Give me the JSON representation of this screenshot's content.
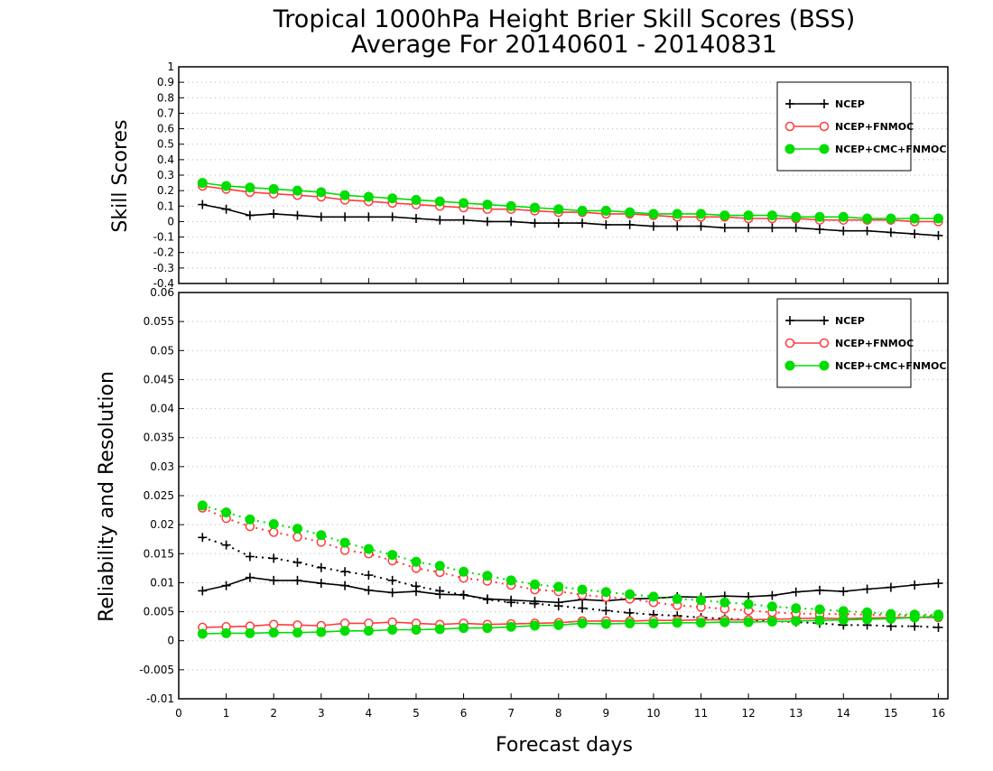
{
  "title_line1": "Tropical 1000hPa Height Brier Skill Scores (BSS)",
  "title_line2": "Average For 20140601 - 20140831",
  "xlabel": "Forecast days",
  "chart_data": [
    {
      "type": "line",
      "panel": "top",
      "ylabel": "Skill Scores",
      "ylim": [
        -0.4,
        1
      ],
      "yticks": [
        "1",
        "0.9",
        "0.8",
        "0.7",
        "0.6",
        "0.5",
        "0.4",
        "0.3",
        "0.2",
        "0.1",
        "0",
        "-0.1",
        "-0.2",
        "-0.3",
        "-0.4"
      ],
      "xlim": [
        0,
        16.2
      ],
      "xticks": [
        "0",
        "1",
        "2",
        "3",
        "4",
        "5",
        "6",
        "7",
        "8",
        "9",
        "10",
        "11",
        "12",
        "13",
        "14",
        "15",
        "16"
      ],
      "grid": true,
      "legend_position": "top-right",
      "x": [
        0.5,
        1,
        1.5,
        2,
        2.5,
        3,
        3.5,
        4,
        4.5,
        5,
        5.5,
        6,
        6.5,
        7,
        7.5,
        8,
        8.5,
        9,
        9.5,
        10,
        10.5,
        11,
        11.5,
        12,
        12.5,
        13,
        13.5,
        14,
        14.5,
        15,
        15.5,
        16
      ],
      "series": [
        {
          "name": "NCEP",
          "color": "#000000",
          "marker": "plus",
          "style": "solid",
          "values": [
            0.11,
            0.08,
            0.04,
            0.05,
            0.04,
            0.03,
            0.03,
            0.03,
            0.03,
            0.02,
            0.01,
            0.01,
            0.0,
            0.0,
            -0.01,
            -0.01,
            -0.01,
            -0.02,
            -0.02,
            -0.03,
            -0.03,
            -0.03,
            -0.04,
            -0.04,
            -0.04,
            -0.04,
            -0.05,
            -0.06,
            -0.06,
            -0.07,
            -0.08,
            -0.09
          ]
        },
        {
          "name": "NCEP+FNMOC",
          "color": "#ff3b3b",
          "marker": "open-circle",
          "style": "solid",
          "values": [
            0.23,
            0.21,
            0.19,
            0.18,
            0.17,
            0.16,
            0.14,
            0.13,
            0.12,
            0.11,
            0.1,
            0.09,
            0.08,
            0.08,
            0.07,
            0.06,
            0.06,
            0.05,
            0.05,
            0.04,
            0.03,
            0.03,
            0.03,
            0.02,
            0.02,
            0.02,
            0.01,
            0.01,
            0.01,
            0.01,
            0.0,
            0.0
          ]
        },
        {
          "name": "NCEP+CMC+FNMOC",
          "color": "#00dd00",
          "marker": "filled-circle",
          "style": "solid",
          "values": [
            0.25,
            0.23,
            0.22,
            0.21,
            0.2,
            0.19,
            0.17,
            0.16,
            0.15,
            0.14,
            0.13,
            0.12,
            0.11,
            0.1,
            0.09,
            0.08,
            0.07,
            0.07,
            0.06,
            0.05,
            0.05,
            0.05,
            0.04,
            0.04,
            0.04,
            0.03,
            0.03,
            0.03,
            0.02,
            0.02,
            0.02,
            0.02
          ]
        }
      ]
    },
    {
      "type": "line",
      "panel": "bottom",
      "ylabel": "Reliability and Resolution",
      "ylim": [
        -0.01,
        0.06
      ],
      "yticks": [
        "0.06",
        "0.055",
        "0.05",
        "0.045",
        "0.04",
        "0.035",
        "0.03",
        "0.025",
        "0.02",
        "0.015",
        "0.01",
        "0.005",
        "0",
        "-0.005",
        "-0.01"
      ],
      "xlim": [
        0,
        16.2
      ],
      "xticks": [
        "0",
        "1",
        "2",
        "3",
        "4",
        "5",
        "6",
        "7",
        "8",
        "9",
        "10",
        "11",
        "12",
        "13",
        "14",
        "15",
        "16"
      ],
      "grid": true,
      "legend_position": "top-right",
      "x": [
        0.5,
        1,
        1.5,
        2,
        2.5,
        3,
        3.5,
        4,
        4.5,
        5,
        5.5,
        6,
        6.5,
        7,
        7.5,
        8,
        8.5,
        9,
        9.5,
        10,
        10.5,
        11,
        11.5,
        12,
        12.5,
        13,
        13.5,
        14,
        14.5,
        15,
        15.5,
        16
      ],
      "series": [
        {
          "name": "NCEP",
          "color": "#000000",
          "marker": "plus",
          "style": "solid",
          "values": [
            0.0086,
            0.0095,
            0.0109,
            0.0104,
            0.0104,
            0.0099,
            0.0095,
            0.0087,
            0.0083,
            0.0085,
            0.008,
            0.0079,
            0.0072,
            0.007,
            0.0068,
            0.0066,
            0.0071,
            0.0069,
            0.0072,
            0.0073,
            0.0076,
            0.0075,
            0.0077,
            0.0076,
            0.0078,
            0.0084,
            0.0087,
            0.0085,
            0.0089,
            0.0092,
            0.0096,
            0.0099
          ]
        },
        {
          "name": "NCEP",
          "color": "#000000",
          "marker": "plus",
          "style": "dotted",
          "values": [
            0.0178,
            0.0165,
            0.0145,
            0.0142,
            0.0135,
            0.0126,
            0.0119,
            0.0113,
            0.0104,
            0.0094,
            0.0086,
            0.0079,
            0.0071,
            0.0066,
            0.0064,
            0.006,
            0.0056,
            0.0052,
            0.0048,
            0.0045,
            0.0043,
            0.004,
            0.0038,
            0.0036,
            0.0034,
            0.0032,
            0.003,
            0.0027,
            0.0027,
            0.0025,
            0.0025,
            0.0023
          ]
        },
        {
          "name": "NCEP+FNMOC",
          "color": "#ff3b3b",
          "marker": "open-circle",
          "style": "solid",
          "values": [
            0.0023,
            0.0024,
            0.0025,
            0.0028,
            0.0027,
            0.0026,
            0.003,
            0.003,
            0.0032,
            0.003,
            0.0028,
            0.003,
            0.0028,
            0.0029,
            0.003,
            0.0031,
            0.0034,
            0.0034,
            0.0034,
            0.0035,
            0.0035,
            0.0036,
            0.0036,
            0.0036,
            0.0037,
            0.0038,
            0.0039,
            0.0038,
            0.0039,
            0.004,
            0.004,
            0.004
          ]
        },
        {
          "name": "NCEP+FNMOC",
          "color": "#ff3b3b",
          "marker": "open-circle",
          "style": "dotted",
          "values": [
            0.0229,
            0.0211,
            0.0197,
            0.0187,
            0.0179,
            0.017,
            0.0156,
            0.015,
            0.0138,
            0.0125,
            0.0118,
            0.0108,
            0.0103,
            0.0096,
            0.0088,
            0.0085,
            0.0079,
            0.0075,
            0.0072,
            0.0066,
            0.0061,
            0.0058,
            0.0055,
            0.0052,
            0.0049,
            0.0047,
            0.0046,
            0.0046,
            0.0045,
            0.0044,
            0.0043,
            0.0043
          ]
        },
        {
          "name": "NCEP+CMC+FNMOC",
          "color": "#00dd00",
          "marker": "filled-circle",
          "style": "solid",
          "values": [
            0.0012,
            0.0013,
            0.0013,
            0.0014,
            0.0014,
            0.0015,
            0.0017,
            0.0017,
            0.0019,
            0.0019,
            0.002,
            0.0022,
            0.0022,
            0.0024,
            0.0026,
            0.0027,
            0.003,
            0.0029,
            0.003,
            0.003,
            0.0031,
            0.0031,
            0.0032,
            0.0032,
            0.0033,
            0.0034,
            0.0035,
            0.0036,
            0.0037,
            0.0038,
            0.004,
            0.0042
          ]
        },
        {
          "name": "NCEP+CMC+FNMOC",
          "color": "#00dd00",
          "marker": "filled-circle",
          "style": "dotted",
          "values": [
            0.0233,
            0.0221,
            0.0209,
            0.0201,
            0.0193,
            0.0182,
            0.0169,
            0.0158,
            0.0148,
            0.0136,
            0.0129,
            0.0119,
            0.0112,
            0.0104,
            0.0097,
            0.0093,
            0.0088,
            0.0084,
            0.008,
            0.0076,
            0.0072,
            0.007,
            0.0066,
            0.0063,
            0.0059,
            0.0056,
            0.0054,
            0.0051,
            0.0049,
            0.0046,
            0.0045,
            0.0045
          ]
        }
      ]
    }
  ]
}
